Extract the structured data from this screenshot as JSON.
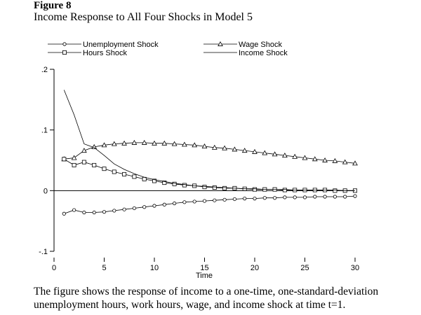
{
  "figure": {
    "label": "Figure 8",
    "title": "Income Response to All Four Shocks in Model 5",
    "caption_line1": "The figure shows the response of income to a one-time, one-standard-deviation",
    "caption_line2": "unemployment hours, work hours, wage, and income shock at time t=1."
  },
  "chart_data": {
    "type": "line",
    "title": "Income Response to All Four Shocks in Model 5",
    "xlabel": "Time",
    "ylabel": "",
    "xlim": [
      0,
      30
    ],
    "ylim": [
      -0.1,
      0.2
    ],
    "x_ticks": [
      0,
      5,
      10,
      15,
      20,
      25,
      30
    ],
    "x_tick_labels": [
      "0",
      "5",
      "10",
      "15",
      "20",
      "25",
      "30"
    ],
    "y_ticks": [
      -0.1,
      0,
      0.1,
      0.2
    ],
    "y_tick_labels": [
      "-.1",
      "0",
      ".1",
      ".2"
    ],
    "grid": false,
    "zero_line": true,
    "legend_position": "top",
    "colors": {
      "line": "#000000",
      "background": "#ffffff"
    },
    "x": [
      1,
      2,
      3,
      4,
      5,
      6,
      7,
      8,
      9,
      10,
      11,
      12,
      13,
      14,
      15,
      16,
      17,
      18,
      19,
      20,
      21,
      22,
      23,
      24,
      25,
      26,
      27,
      28,
      29,
      30
    ],
    "series": [
      {
        "name": "Unemployment Shock",
        "marker": "circle",
        "values": [
          -0.038,
          -0.032,
          -0.036,
          -0.036,
          -0.035,
          -0.033,
          -0.031,
          -0.029,
          -0.027,
          -0.025,
          -0.023,
          -0.021,
          -0.019,
          -0.018,
          -0.017,
          -0.016,
          -0.015,
          -0.014,
          -0.013,
          -0.013,
          -0.012,
          -0.012,
          -0.011,
          -0.011,
          -0.011,
          -0.01,
          -0.01,
          -0.01,
          -0.01,
          -0.009
        ]
      },
      {
        "name": "Wage Shock",
        "marker": "triangle",
        "values": [
          0.052,
          0.054,
          0.066,
          0.072,
          0.075,
          0.077,
          0.078,
          0.079,
          0.079,
          0.078,
          0.078,
          0.077,
          0.076,
          0.075,
          0.073,
          0.071,
          0.07,
          0.068,
          0.066,
          0.064,
          0.062,
          0.06,
          0.058,
          0.056,
          0.054,
          0.052,
          0.05,
          0.049,
          0.047,
          0.045
        ]
      },
      {
        "name": "Hours Shock",
        "marker": "square",
        "values": [
          0.052,
          0.042,
          0.047,
          0.042,
          0.036,
          0.031,
          0.027,
          0.023,
          0.019,
          0.016,
          0.013,
          0.011,
          0.009,
          0.008,
          0.006,
          0.005,
          0.004,
          0.004,
          0.003,
          0.002,
          0.002,
          0.002,
          0.001,
          0.001,
          0.001,
          0.001,
          0.001,
          0.0,
          0.0,
          0.0
        ]
      },
      {
        "name": "Income Shock",
        "marker": "none",
        "values": [
          0.166,
          0.125,
          0.077,
          0.071,
          0.058,
          0.044,
          0.035,
          0.028,
          0.022,
          0.018,
          0.015,
          0.012,
          0.01,
          0.008,
          0.007,
          0.006,
          0.005,
          0.004,
          0.003,
          0.003,
          0.002,
          0.002,
          0.002,
          0.001,
          0.001,
          0.001,
          0.001,
          0.001,
          0.0,
          0.0
        ]
      }
    ]
  }
}
